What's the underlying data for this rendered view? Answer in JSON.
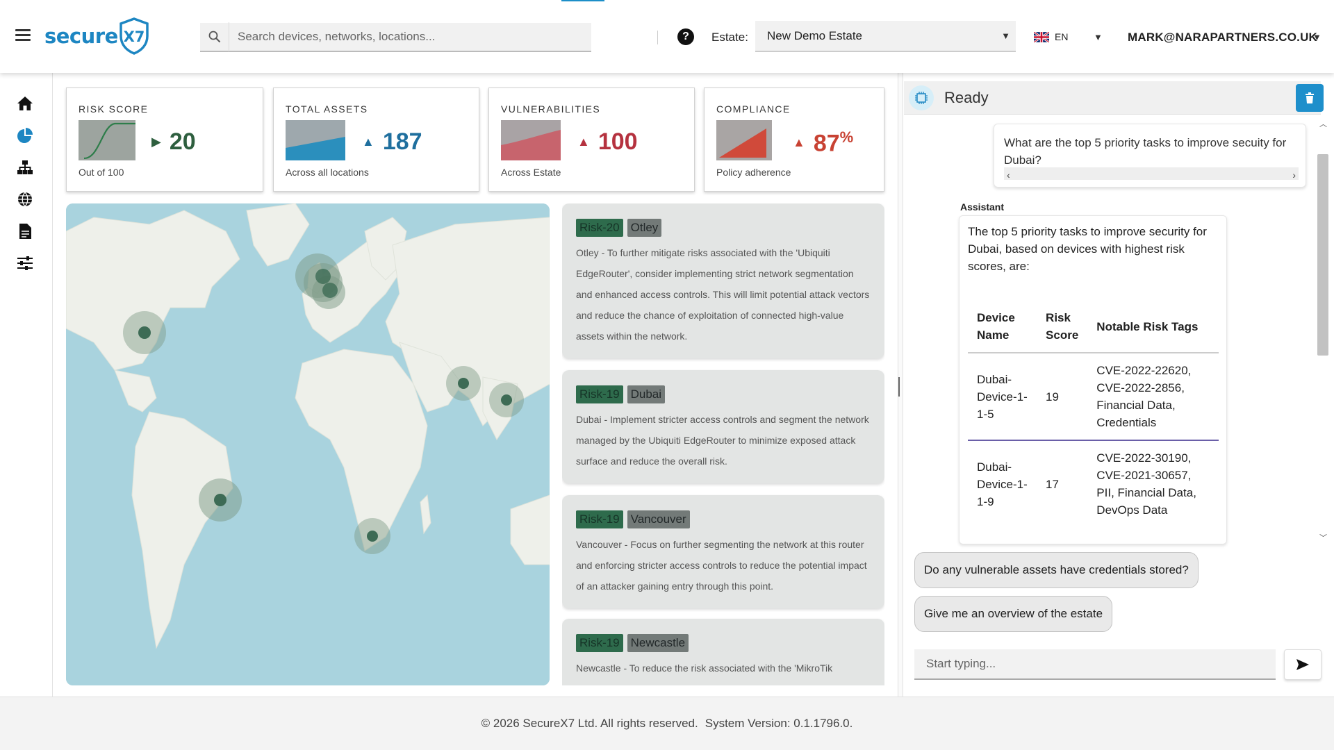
{
  "header": {
    "logo_text": "secure",
    "logo_mark": "X7",
    "search_placeholder": "Search devices, networks, locations...",
    "help_icon": "help-icon",
    "estate_label": "Estate:",
    "estate_value": "New Demo Estate",
    "language": "EN",
    "user": "MARK@NARAPARTNERS.CO.UK"
  },
  "sidebar": {
    "items": [
      {
        "name": "home",
        "icon": "home-icon"
      },
      {
        "name": "dashboard",
        "icon": "pie-chart-icon"
      },
      {
        "name": "network",
        "icon": "network-icon"
      },
      {
        "name": "locations",
        "icon": "globe-icon"
      },
      {
        "name": "reports",
        "icon": "document-icon"
      },
      {
        "name": "settings",
        "icon": "sliders-icon"
      }
    ],
    "active": "dashboard"
  },
  "kpis": {
    "risk": {
      "label": "RISK SCORE",
      "value": "20",
      "sub": "Out of 100",
      "color": "#2e5f3f"
    },
    "assets": {
      "label": "TOTAL ASSETS",
      "value": "187",
      "sub": "Across all locations",
      "color": "#1f6f9e"
    },
    "vulns": {
      "label": "VULNERABILITIES",
      "value": "100",
      "sub": "Across Estate",
      "color": "#b5323f"
    },
    "compliance": {
      "label": "COMPLIANCE",
      "value": "87",
      "unit": "%",
      "sub": "Policy adherence",
      "color": "#c84233"
    }
  },
  "risk_cards": [
    {
      "risk": "Risk-20",
      "location": "Otley",
      "text": "Otley - To further mitigate risks associated with the 'Ubiquiti EdgeRouter', consider implementing strict network segmentation and enhanced access controls. This will limit potential attack vectors and reduce the chance of exploitation of connected high-value assets within the network."
    },
    {
      "risk": "Risk-19",
      "location": "Dubai",
      "text": "Dubai - Implement stricter access controls and segment the network managed by the Ubiquiti EdgeRouter to minimize exposed attack surface and reduce the overall risk."
    },
    {
      "risk": "Risk-19",
      "location": "Vancouver",
      "text": "Vancouver - Focus on further segmenting the network at this router and enforcing stricter access controls to reduce the potential impact of an attacker gaining entry through this point."
    },
    {
      "risk": "Risk-19",
      "location": "Newcastle",
      "text": "Newcastle - To reduce the risk associated with the 'MikroTik"
    }
  ],
  "chat": {
    "status": "Ready",
    "user_message": "What are the top 5 priority tasks to improve secuity for Dubai?",
    "assistant_label": "Assistant",
    "assistant_intro": "The top 5 priority tasks to improve security for Dubai, based on devices with highest risk scores, are:",
    "table": {
      "headers": [
        "Device Name",
        "Risk Score",
        "Notable Risk Tags"
      ],
      "rows": [
        [
          "Dubai-Device-1-1-5",
          "19",
          "CVE-2022-22620, CVE-2022-2856, Financial Data, Credentials"
        ],
        [
          "Dubai-Device-1-1-9",
          "17",
          "CVE-2022-30190, CVE-2021-30657, PII, Financial Data, DevOps Data"
        ]
      ]
    },
    "suggestions": [
      "Do any vulnerable assets have credentials stored?",
      "Give me an overview of the estate"
    ],
    "input_placeholder": "Start typing..."
  },
  "footer": {
    "copyright": "© 2026 SecureX7 Ltd. All rights reserved.",
    "version": "System Version: 0.1.1796.0."
  },
  "colors": {
    "brand": "#1d86c2",
    "risk_tag": "#2e6b4c",
    "location_tag": "#737a78",
    "ocean": "#a9d3de",
    "land": "#eef0ea"
  }
}
